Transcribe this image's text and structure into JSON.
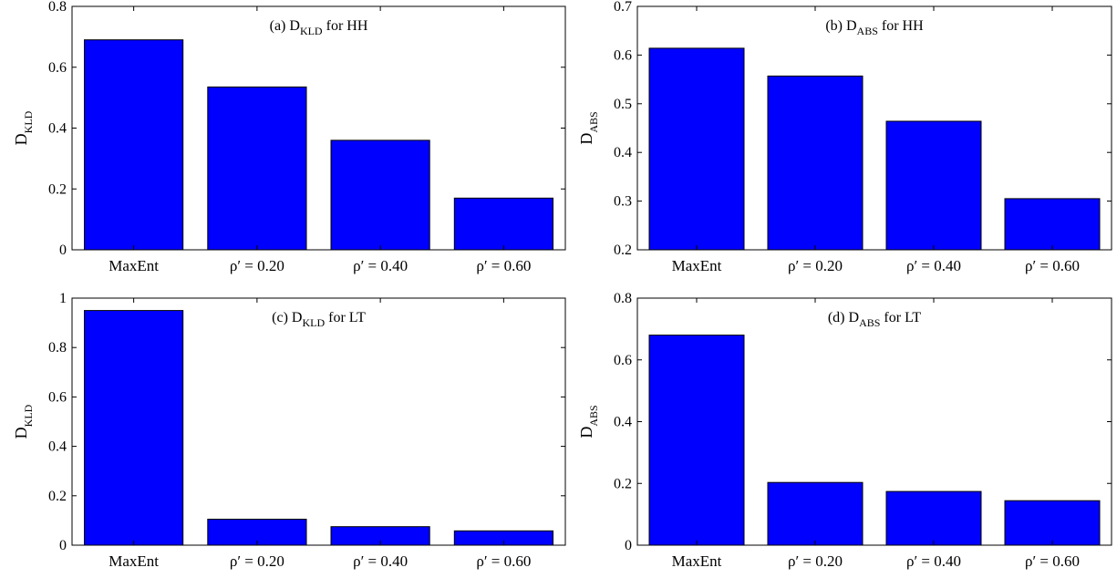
{
  "chart_data": [
    {
      "type": "bar",
      "title_main": "(a) D",
      "title_sub": "KLD",
      "title_tail": " for HH",
      "ylabel_main": "D",
      "ylabel_sub": "KLD",
      "categories": [
        "MaxEnt",
        "ρ′ = 0.20",
        "ρ′ = 0.40",
        "ρ′ = 0.60"
      ],
      "values": [
        0.69,
        0.535,
        0.36,
        0.17
      ],
      "ylim": [
        0,
        0.8
      ],
      "yticks": [
        0,
        0.2,
        0.4,
        0.6,
        0.8
      ],
      "ytick_labels": [
        "0",
        "0.2",
        "0.4",
        "0.6",
        "0.8"
      ],
      "bar_color": "#0000FF",
      "grid": false
    },
    {
      "type": "bar",
      "title_main": "(b) D",
      "title_sub": "ABS",
      "title_tail": " for HH",
      "ylabel_main": "D",
      "ylabel_sub": "ABS",
      "categories": [
        "MaxEnt",
        "ρ′ = 0.20",
        "ρ′ = 0.40",
        "ρ′ = 0.60"
      ],
      "values": [
        0.614,
        0.557,
        0.464,
        0.305
      ],
      "ylim": [
        0.2,
        0.7
      ],
      "yticks": [
        0.2,
        0.3,
        0.4,
        0.5,
        0.6,
        0.7
      ],
      "ytick_labels": [
        "0.2",
        "0.3",
        "0.4",
        "0.5",
        "0.6",
        "0.7"
      ],
      "bar_color": "#0000FF",
      "grid": false
    },
    {
      "type": "bar",
      "title_main": "(c) D",
      "title_sub": "KLD",
      "title_tail": " for LT",
      "ylabel_main": "D",
      "ylabel_sub": "KLD",
      "categories": [
        "MaxEnt",
        "ρ′ = 0.20",
        "ρ′ = 0.40",
        "ρ′ = 0.60"
      ],
      "values": [
        0.95,
        0.105,
        0.075,
        0.058
      ],
      "ylim": [
        0,
        1
      ],
      "yticks": [
        0,
        0.2,
        0.4,
        0.6,
        0.8,
        1
      ],
      "ytick_labels": [
        "0",
        "0.2",
        "0.4",
        "0.6",
        "0.8",
        "1"
      ],
      "bar_color": "#0000FF",
      "grid": false
    },
    {
      "type": "bar",
      "title_main": "(d) D",
      "title_sub": "ABS",
      "title_tail": " for LT",
      "ylabel_main": "D",
      "ylabel_sub": "ABS",
      "categories": [
        "MaxEnt",
        "ρ′ = 0.20",
        "ρ′ = 0.40",
        "ρ′ = 0.60"
      ],
      "values": [
        0.68,
        0.203,
        0.174,
        0.144
      ],
      "ylim": [
        0,
        0.8
      ],
      "yticks": [
        0,
        0.2,
        0.4,
        0.6,
        0.8
      ],
      "ytick_labels": [
        "0",
        "0.2",
        "0.4",
        "0.6",
        "0.8"
      ],
      "bar_color": "#0000FF",
      "grid": false
    }
  ]
}
